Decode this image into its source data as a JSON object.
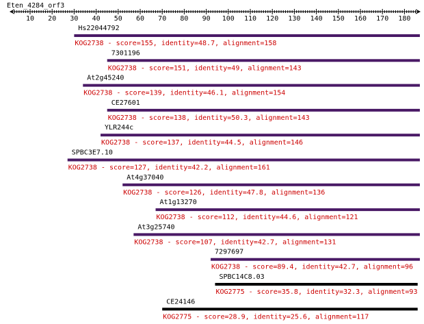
{
  "sequence_name": "Eten_4284_orf3",
  "axis": {
    "min": 1,
    "max": 187,
    "tick_labels": [
      10,
      20,
      30,
      40,
      50,
      60,
      70,
      80,
      90,
      100,
      110,
      120,
      130,
      140,
      150,
      160,
      170,
      180
    ]
  },
  "colors": {
    "purple_bar": "#4a1a66",
    "black_bar": "#000000",
    "label_red": "#cc0000"
  },
  "hits": [
    {
      "name": "Hs22044792",
      "start": 30,
      "end": 187,
      "color": "purple",
      "desc": "KOG2738 - score=155, identity=48.7, alignment=158"
    },
    {
      "name": "7301196",
      "start": 45,
      "end": 187,
      "color": "purple",
      "desc": "KOG2738 - score=151, identity=49, alignment=143"
    },
    {
      "name": "At2g45240",
      "start": 34,
      "end": 187,
      "color": "purple",
      "desc": "KOG2738 - score=139, identity=46.1, alignment=154"
    },
    {
      "name": "CE27601",
      "start": 45,
      "end": 187,
      "color": "purple",
      "desc": "KOG2738 - score=138, identity=50.3, alignment=143"
    },
    {
      "name": "YLR244c",
      "start": 42,
      "end": 187,
      "color": "purple",
      "desc": "KOG2738 - score=137, identity=44.5, alignment=146"
    },
    {
      "name": "SPBC3E7.10",
      "start": 27,
      "end": 187,
      "color": "purple",
      "desc": "KOG2738 - score=127, identity=42.2, alignment=161"
    },
    {
      "name": "At4g37040",
      "start": 52,
      "end": 187,
      "color": "purple",
      "desc": "KOG2738 - score=126, identity=47.8, alignment=136"
    },
    {
      "name": "At1g13270",
      "start": 67,
      "end": 187,
      "color": "purple",
      "desc": "KOG2738 - score=112, identity=44.6, alignment=121"
    },
    {
      "name": "At3g25740",
      "start": 57,
      "end": 187,
      "color": "purple",
      "desc": "KOG2738 - score=107, identity=42.7, alignment=131"
    },
    {
      "name": "7297697",
      "start": 92,
      "end": 187,
      "color": "purple",
      "desc": "KOG2738 - score=89.4, identity=42.7, alignment=96"
    },
    {
      "name": "SPBC14C8.03",
      "start": 94,
      "end": 186,
      "color": "black",
      "desc": "KOG2775 - score=35.8, identity=32.3, alignment=93"
    },
    {
      "name": "CE24146",
      "start": 70,
      "end": 186,
      "color": "black",
      "desc": "KOG2775 - score=28.9, identity=25.6, alignment=117"
    }
  ]
}
